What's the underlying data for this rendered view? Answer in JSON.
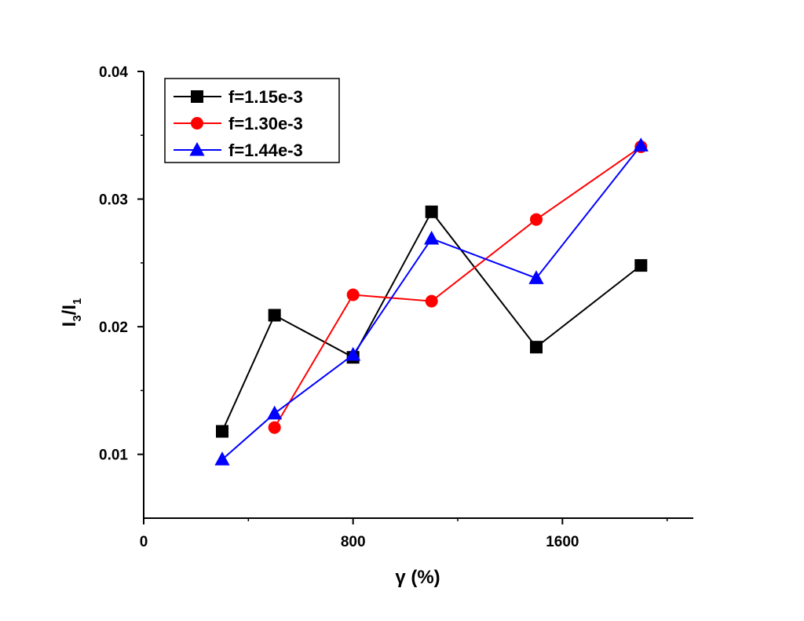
{
  "chart_data": {
    "type": "line",
    "title": "",
    "xlabel": "γ (%)",
    "ylabel_main": "I",
    "ylabel_sub1": "3",
    "ylabel_sep": "/I",
    "ylabel_sub2": "1",
    "xlim": [
      0,
      2100
    ],
    "ylim": [
      0.005,
      0.04
    ],
    "x_ticks": [
      0,
      800,
      1600
    ],
    "x_tick_labels": [
      "0",
      "800",
      "1600"
    ],
    "y_ticks": [
      0.01,
      0.02,
      0.03,
      0.04
    ],
    "y_tick_labels": [
      "0.01",
      "0.02",
      "0.03",
      "0.04"
    ],
    "legend_position": "top-left",
    "grid": false,
    "series": [
      {
        "name": "f=1.15e-3",
        "color": "#000000",
        "marker": "square",
        "x": [
          300,
          500,
          800,
          1100,
          1500,
          1900
        ],
        "y": [
          0.0118,
          0.0209,
          0.0176,
          0.029,
          0.0184,
          0.0248
        ]
      },
      {
        "name": "f=1.30e-3",
        "color": "#ff0000",
        "marker": "circle",
        "x": [
          500,
          800,
          1100,
          1500,
          1900
        ],
        "y": [
          0.0121,
          0.0225,
          0.022,
          0.0284,
          0.0341
        ]
      },
      {
        "name": "f=1.44e-3",
        "color": "#0000ff",
        "marker": "triangle",
        "x": [
          300,
          500,
          800,
          1100,
          1500,
          1900
        ],
        "y": [
          0.0096,
          0.0132,
          0.0178,
          0.0269,
          0.0238,
          0.0342
        ]
      }
    ]
  }
}
